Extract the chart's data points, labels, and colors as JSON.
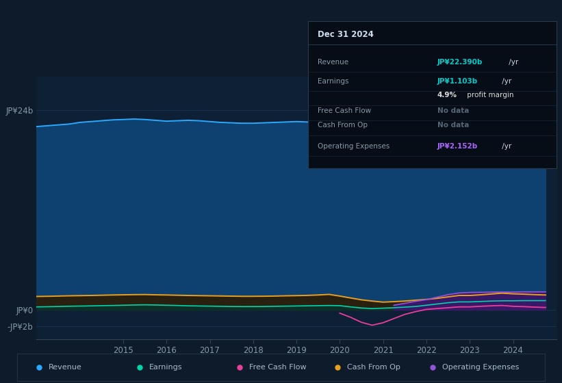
{
  "background_color": "#0d1b2a",
  "chart_bg_color": "#0e2035",
  "ytick_labels": [
    "JP¥24b",
    "JP¥0",
    "-JP¥2b"
  ],
  "ytick_vals": [
    24,
    0,
    -2
  ],
  "ylim": [
    -3.5,
    28
  ],
  "xlim_start": 2013.0,
  "xlim_end": 2025.0,
  "xtick_years": [
    2015,
    2016,
    2017,
    2018,
    2019,
    2020,
    2021,
    2022,
    2023,
    2024
  ],
  "revenue_color_line": "#29aaff",
  "revenue_color_fill": "#0e4070",
  "earnings_color_line": "#00d4aa",
  "earnings_color_fill": "#0a3028",
  "cashfromop_color_line": "#e8a020",
  "cashfromop_color_fill": "#2a2010",
  "fcf_color_line": "#e8409a",
  "opex_color_line": "#9055d4",
  "opex_color_fill": "#3a1868",
  "series_x": [
    2013.0,
    2013.25,
    2013.5,
    2013.75,
    2014.0,
    2014.25,
    2014.5,
    2014.75,
    2015.0,
    2015.25,
    2015.5,
    2015.75,
    2016.0,
    2016.25,
    2016.5,
    2016.75,
    2017.0,
    2017.25,
    2017.5,
    2017.75,
    2018.0,
    2018.25,
    2018.5,
    2018.75,
    2019.0,
    2019.25,
    2019.5,
    2019.75,
    2020.0,
    2020.25,
    2020.5,
    2020.75,
    2021.0,
    2021.25,
    2021.5,
    2021.75,
    2022.0,
    2022.25,
    2022.5,
    2022.75,
    2023.0,
    2023.25,
    2023.5,
    2023.75,
    2024.0,
    2024.25,
    2024.5,
    2024.75
  ],
  "revenue": [
    22.0,
    22.1,
    22.2,
    22.3,
    22.5,
    22.6,
    22.7,
    22.8,
    22.85,
    22.9,
    22.85,
    22.75,
    22.65,
    22.7,
    22.75,
    22.7,
    22.6,
    22.5,
    22.45,
    22.4,
    22.4,
    22.45,
    22.5,
    22.55,
    22.6,
    22.55,
    22.5,
    22.45,
    22.1,
    21.0,
    19.8,
    19.0,
    18.6,
    18.5,
    18.7,
    19.1,
    19.6,
    20.2,
    20.7,
    21.1,
    21.2,
    21.4,
    21.6,
    21.9,
    22.1,
    22.25,
    22.35,
    22.39
  ],
  "earnings": [
    0.35,
    0.37,
    0.4,
    0.43,
    0.45,
    0.47,
    0.5,
    0.52,
    0.55,
    0.58,
    0.6,
    0.58,
    0.55,
    0.52,
    0.48,
    0.46,
    0.44,
    0.42,
    0.4,
    0.39,
    0.39,
    0.4,
    0.42,
    0.44,
    0.46,
    0.48,
    0.5,
    0.52,
    0.5,
    0.35,
    0.22,
    0.15,
    0.2,
    0.25,
    0.32,
    0.4,
    0.55,
    0.7,
    0.85,
    0.95,
    0.95,
    1.0,
    1.05,
    1.08,
    1.08,
    1.1,
    1.1,
    1.103
  ],
  "cash_from_op": [
    1.6,
    1.62,
    1.65,
    1.68,
    1.7,
    1.72,
    1.75,
    1.78,
    1.8,
    1.82,
    1.83,
    1.8,
    1.78,
    1.75,
    1.72,
    1.7,
    1.68,
    1.66,
    1.64,
    1.62,
    1.62,
    1.63,
    1.65,
    1.68,
    1.7,
    1.73,
    1.78,
    1.85,
    1.65,
    1.42,
    1.2,
    1.05,
    0.92,
    0.98,
    1.05,
    1.15,
    1.25,
    1.38,
    1.55,
    1.72,
    1.72,
    1.8,
    1.9,
    2.0,
    1.92,
    1.88,
    1.82,
    1.78
  ],
  "free_cash_flow": [
    null,
    null,
    null,
    null,
    null,
    null,
    null,
    null,
    null,
    null,
    null,
    null,
    null,
    null,
    null,
    null,
    null,
    null,
    null,
    null,
    null,
    null,
    null,
    null,
    null,
    null,
    null,
    null,
    -0.4,
    -0.9,
    -1.5,
    -1.85,
    -1.55,
    -1.05,
    -0.55,
    -0.22,
    0.05,
    0.15,
    0.25,
    0.35,
    0.35,
    0.42,
    0.48,
    0.52,
    0.42,
    0.38,
    0.32,
    0.28
  ],
  "op_expenses": [
    null,
    null,
    null,
    null,
    null,
    null,
    null,
    null,
    null,
    null,
    null,
    null,
    null,
    null,
    null,
    null,
    null,
    null,
    null,
    null,
    null,
    null,
    null,
    null,
    null,
    null,
    null,
    null,
    null,
    null,
    null,
    null,
    null,
    0.55,
    0.78,
    1.02,
    1.22,
    1.52,
    1.82,
    2.02,
    2.08,
    2.1,
    2.12,
    2.13,
    2.12,
    2.15,
    2.15,
    2.152
  ],
  "legend": [
    {
      "label": "Revenue",
      "color": "#29aaff"
    },
    {
      "label": "Earnings",
      "color": "#00d4aa"
    },
    {
      "label": "Free Cash Flow",
      "color": "#e8409a"
    },
    {
      "label": "Cash From Op",
      "color": "#e8a020"
    },
    {
      "label": "Operating Expenses",
      "color": "#9055d4"
    }
  ]
}
